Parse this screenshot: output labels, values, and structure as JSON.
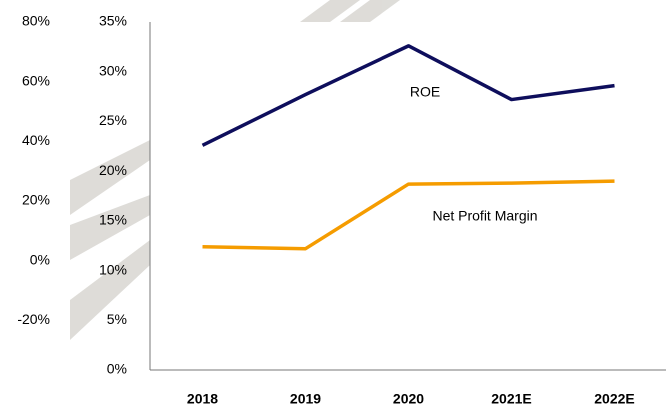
{
  "chart_data": {
    "type": "line",
    "categories": [
      "2018",
      "2019",
      "2020",
      "2021E",
      "2022E"
    ],
    "series": [
      {
        "name": "ROE",
        "color": "#0e0e5c",
        "values": [
          22.6,
          27.7,
          32.6,
          27.2,
          28.6
        ]
      },
      {
        "name": "Net Profit Margin",
        "color": "#f59c00",
        "values": [
          12.4,
          12.2,
          18.7,
          18.8,
          19.0
        ]
      }
    ],
    "ylim": [
      0,
      35
    ],
    "yticks": [
      {
        "value": 0,
        "label": "0%"
      },
      {
        "value": 5,
        "label": "5%"
      },
      {
        "value": 10,
        "label": "10%"
      },
      {
        "value": 15,
        "label": "15%"
      },
      {
        "value": 20,
        "label": "20%"
      },
      {
        "value": 25,
        "label": "25%"
      },
      {
        "value": 30,
        "label": "30%"
      },
      {
        "value": 35,
        "label": "35%"
      }
    ],
    "y2lim": [
      -36.7,
      80
    ],
    "y2ticks": [
      {
        "value": -20,
        "label": "-20%"
      },
      {
        "value": 0,
        "label": "0%"
      },
      {
        "value": 20,
        "label": "20%"
      },
      {
        "value": 40,
        "label": "40%"
      },
      {
        "value": 60,
        "label": "60%"
      },
      {
        "value": 80,
        "label": "80%"
      }
    ]
  }
}
